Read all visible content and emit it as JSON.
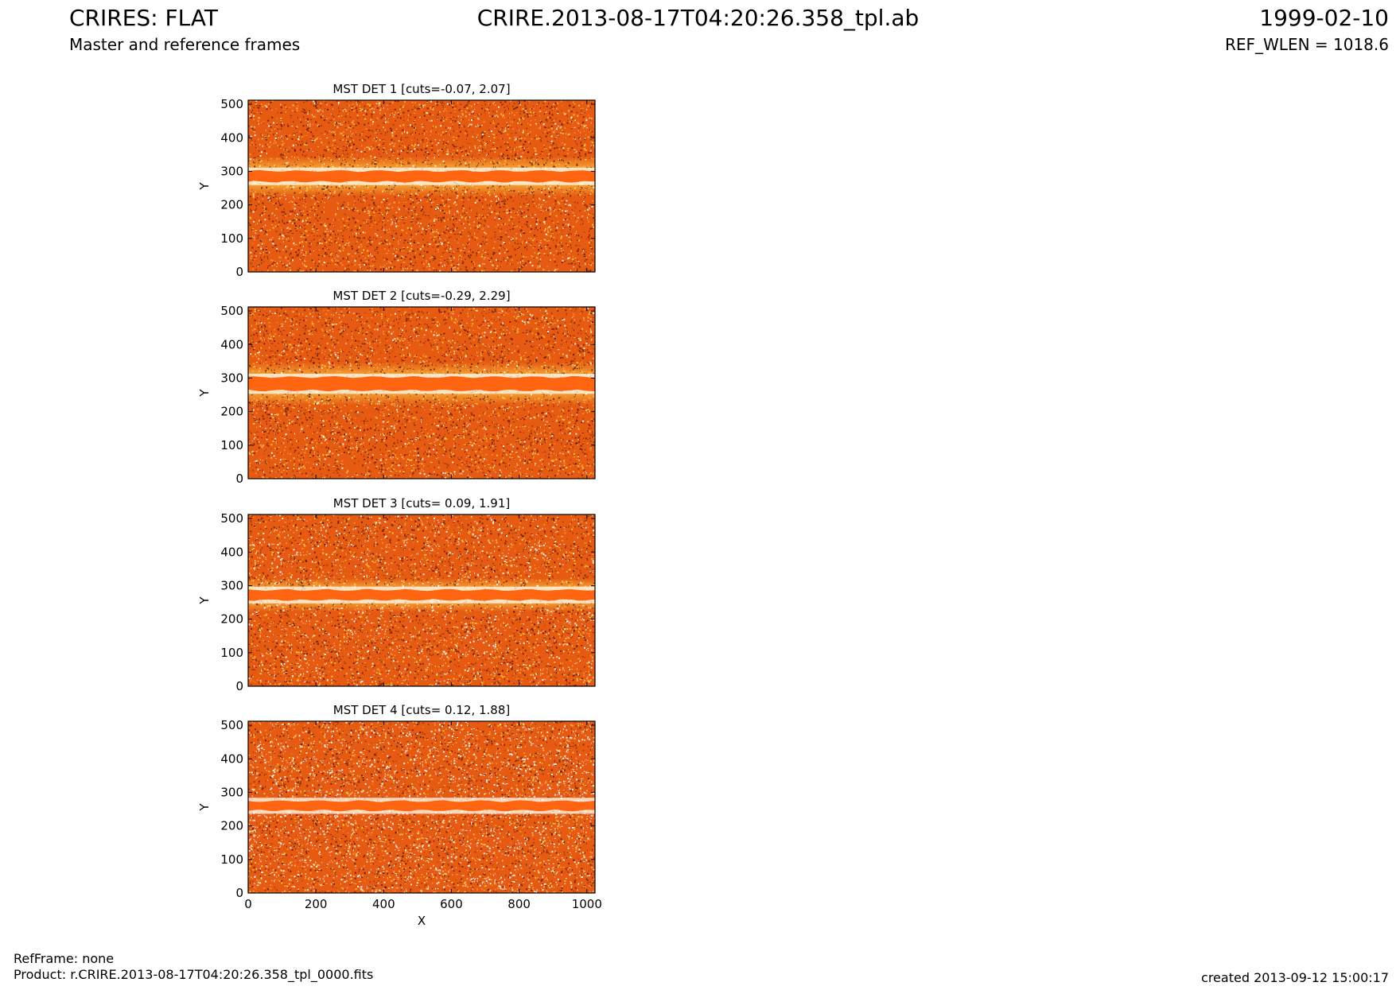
{
  "header": {
    "title_left": "CRIRES: FLAT",
    "subtitle_left": "Master and reference frames",
    "title_center": "CRIRE.2013-08-17T04:20:26.358_tpl.ab",
    "title_right": "1999-02-10",
    "subtitle_right": "REF_WLEN = 1018.6"
  },
  "footer": {
    "refframe": "RefFrame: none",
    "product": "Product: r.CRIRE.2013-08-17T04:20:26.358_tpl_0000.fits",
    "created": "created 2013-09-12 15:00:17"
  },
  "colors": {
    "base": "#e65a12",
    "band": "#ff6410",
    "bright": "#ffffff",
    "yellow": "#ffd24a",
    "dark": "#5a1406",
    "black": "#000000"
  },
  "chart_data": [
    {
      "type": "heatmap",
      "title": "MST DET 1 [cuts=-0.07, 2.07]",
      "xlabel": "",
      "ylabel": "Y",
      "xlim": [
        0,
        1024
      ],
      "ylim": [
        0,
        512
      ],
      "xticks": [],
      "yticks": [
        0,
        100,
        200,
        300,
        400,
        500
      ],
      "band_center_y": 285,
      "band_halfwidth": 16,
      "glow_halfwidth": 60,
      "noise_style": "dense"
    },
    {
      "type": "heatmap",
      "title": "MST DET 2 [cuts=-0.29, 2.29]",
      "xlabel": "",
      "ylabel": "Y",
      "xlim": [
        0,
        1024
      ],
      "ylim": [
        0,
        512
      ],
      "xticks": [],
      "yticks": [
        0,
        100,
        200,
        300,
        400,
        500
      ],
      "band_center_y": 283,
      "band_halfwidth": 20,
      "glow_halfwidth": 65,
      "noise_style": "dense"
    },
    {
      "type": "heatmap",
      "title": "MST DET 3 [cuts= 0.09, 1.91]",
      "xlabel": "",
      "ylabel": "Y",
      "xlim": [
        0,
        1024
      ],
      "ylim": [
        0,
        512
      ],
      "xticks": [],
      "yticks": [
        0,
        100,
        200,
        300,
        400,
        500
      ],
      "band_center_y": 272,
      "band_halfwidth": 15,
      "glow_halfwidth": 50,
      "noise_style": "speckled"
    },
    {
      "type": "heatmap",
      "title": "MST DET 4 [cuts= 0.12, 1.88]",
      "xlabel": "X",
      "ylabel": "Y",
      "xlim": [
        0,
        1024
      ],
      "ylim": [
        0,
        512
      ],
      "xticks": [
        0,
        200,
        400,
        600,
        800,
        1000
      ],
      "yticks": [
        0,
        100,
        200,
        300,
        400,
        500
      ],
      "band_center_y": 260,
      "band_halfwidth": 14,
      "glow_halfwidth": 25,
      "noise_style": "sparse"
    }
  ]
}
